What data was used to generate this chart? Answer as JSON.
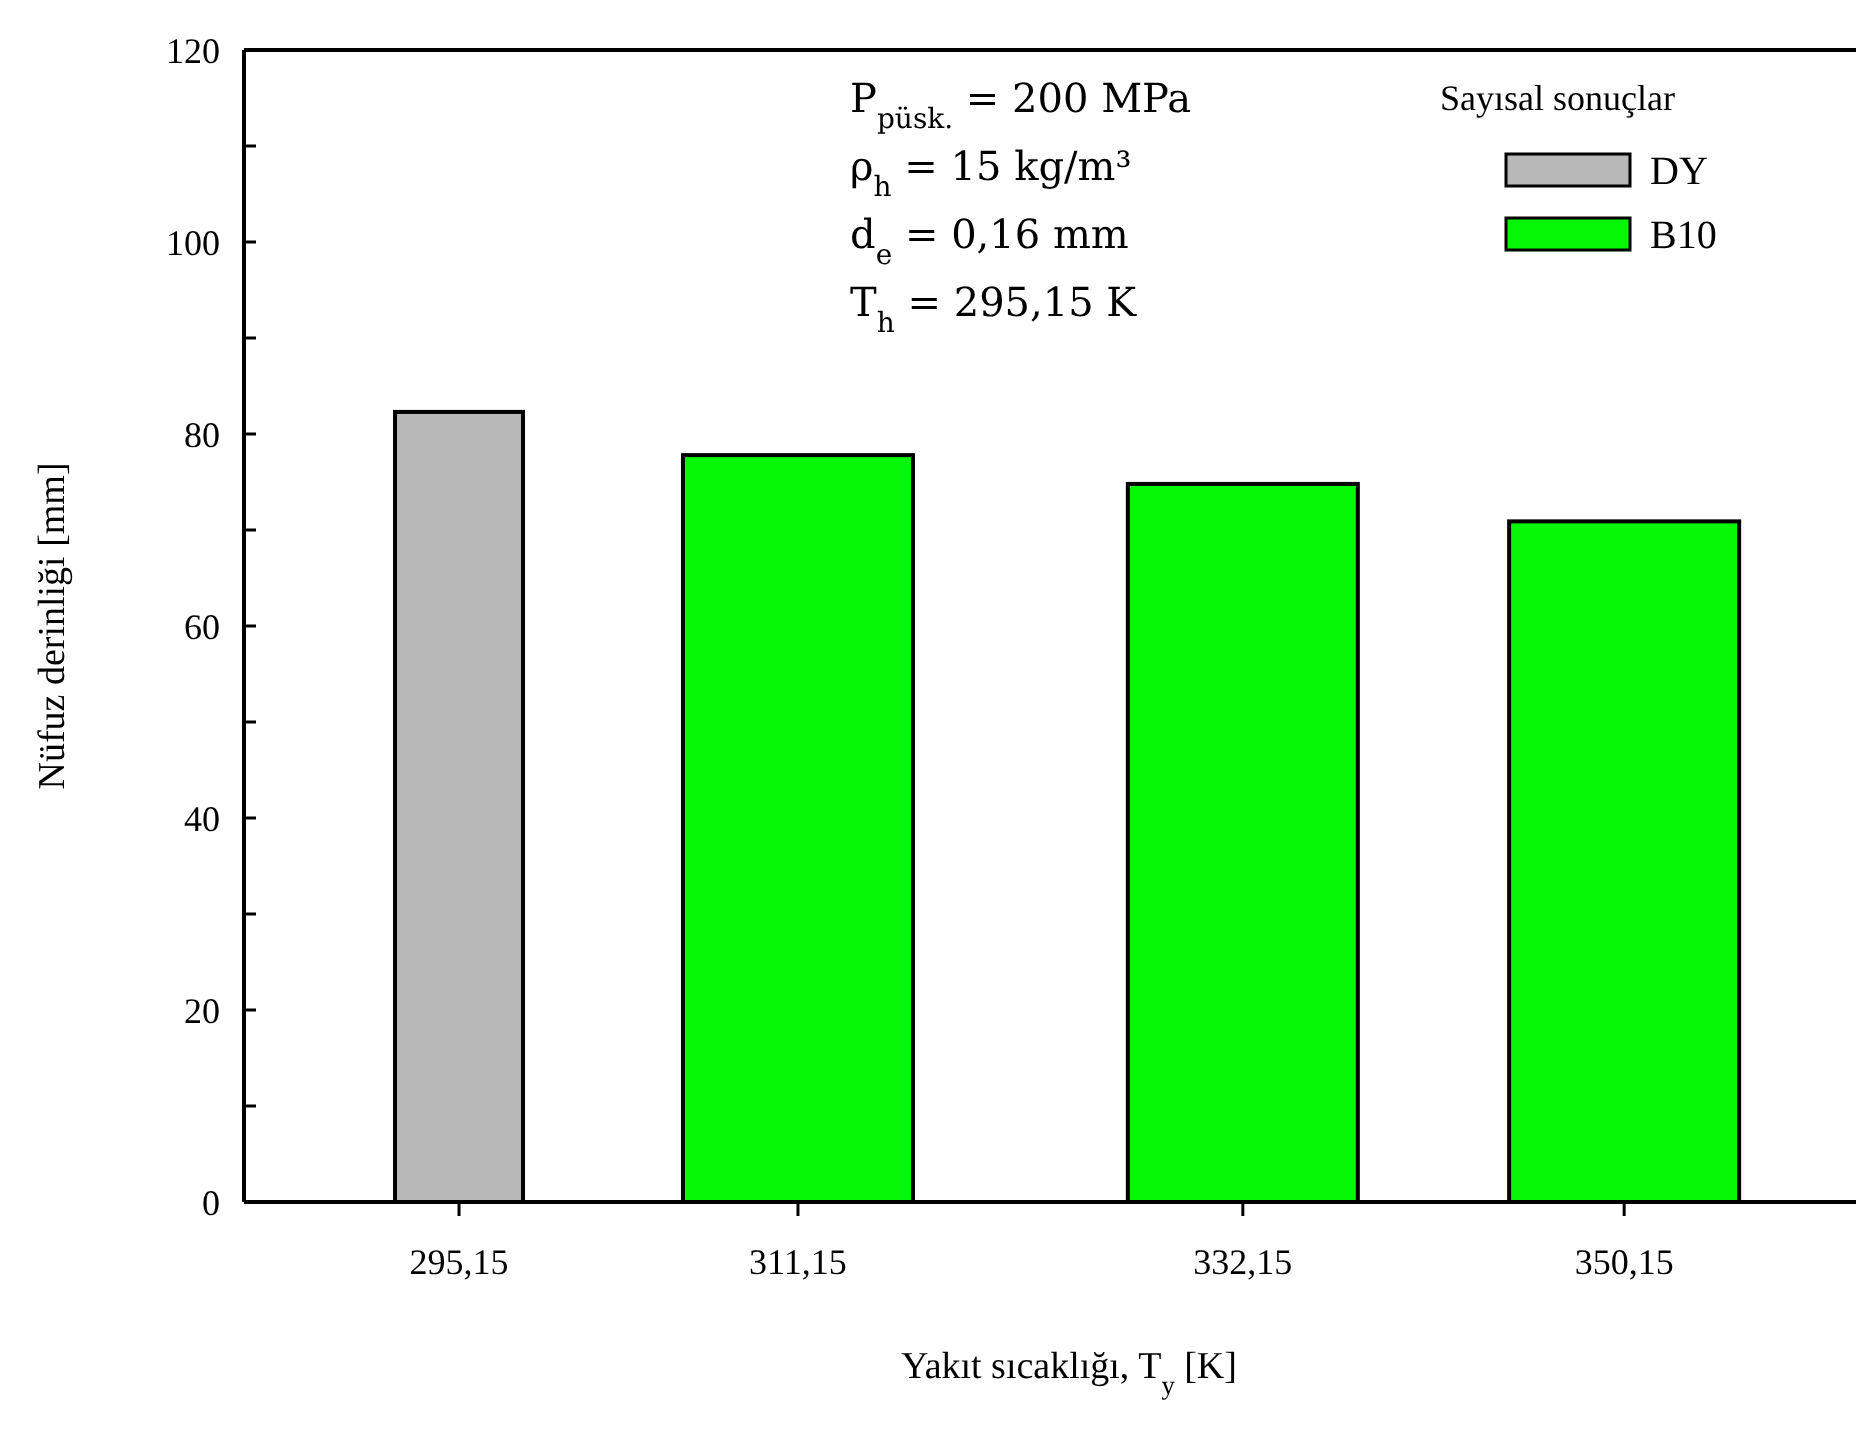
{
  "chart_data": {
    "type": "bar",
    "xlabel": "Yakıt sıcaklığı, T$_{y}$ [K]",
    "ylabel": "Nüfuz derinliği [mm]",
    "legend_title": "Sayısal sonuçlar",
    "legend": "top right",
    "series": [
      {
        "name": "DY",
        "color": "#b8b8b8",
        "x": [
          295.15
        ],
        "values": [
          82.3
        ]
      },
      {
        "name": "B10",
        "color": "#06f706",
        "x": [
          311.15,
          332.15,
          350.15
        ],
        "values": [
          77.8,
          74.8,
          70.9
        ]
      }
    ],
    "xlim": [
      285,
      361
    ],
    "xticks": [
      {
        "value": 295.15,
        "label": "295,15"
      },
      {
        "value": 311.15,
        "label": "311,15"
      },
      {
        "value": 332.15,
        "label": "332,15"
      },
      {
        "value": 350.15,
        "label": "350,15"
      }
    ],
    "ylim": [
      0,
      120
    ],
    "yticks": [
      0,
      {
        "value": 10,
        "label": null
      },
      20,
      {
        "value": 30,
        "label": null
      },
      40,
      {
        "value": 50,
        "label": null
      },
      60,
      {
        "value": 70,
        "label": null
      },
      80,
      {
        "value": 90,
        "label": null
      },
      100,
      {
        "value": 110,
        "label": null
      },
      120
    ],
    "annotations": [
      "P$_{püsk.}$ = 200 MPa",
      "ρ$_{h}$ = 15 kg/m³",
      "d$_{e}$ = 0,16 mm",
      "T$_{h}$ = 295,15 K"
    ]
  }
}
